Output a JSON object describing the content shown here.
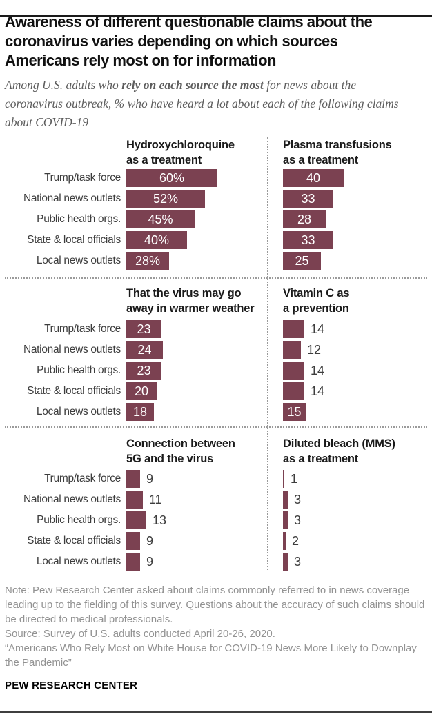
{
  "header": {
    "title_lines": [
      "Awareness of different questionable claims about the",
      "coronavirus varies depending on which sources",
      "Americans rely most on for information"
    ],
    "subtitle": {
      "pre": "Among U.S. adults who ",
      "bold": "rely on each source the most",
      "post": " for news about the coronavirus outbreak, % who have heard a lot about each of the following claims about COVID-19"
    }
  },
  "categories": [
    "Trump/task force",
    "National news outlets",
    "Public health orgs.",
    "State & local officials",
    "Local news outlets"
  ],
  "chart_data": [
    {
      "type": "bar",
      "title_lines": [
        "Hydroxychloroquine",
        "as a treatment"
      ],
      "categories": [
        "Trump/task force",
        "National news outlets",
        "Public health orgs.",
        "State & local officials",
        "Local news outlets"
      ],
      "values": [
        60,
        52,
        45,
        40,
        28
      ],
      "labels": [
        "60%",
        "52%",
        "45%",
        "40%",
        "28%"
      ],
      "label_inside": [
        true,
        true,
        true,
        true,
        true
      ],
      "show_category_labels": true,
      "xlim": [
        0,
        100
      ]
    },
    {
      "type": "bar",
      "title_lines": [
        "Plasma transfusions",
        "as a treatment"
      ],
      "categories": [
        "Trump/task force",
        "National news outlets",
        "Public health orgs.",
        "State & local officials",
        "Local news outlets"
      ],
      "values": [
        40,
        33,
        28,
        33,
        25
      ],
      "labels": [
        "40",
        "33",
        "28",
        "33",
        "25"
      ],
      "label_inside": [
        true,
        true,
        true,
        true,
        true
      ],
      "show_category_labels": false,
      "xlim": [
        0,
        100
      ]
    },
    {
      "type": "bar",
      "title_lines": [
        "That the virus may go",
        "away in warmer weather"
      ],
      "categories": [
        "Trump/task force",
        "National news outlets",
        "Public health orgs.",
        "State & local officials",
        "Local news outlets"
      ],
      "values": [
        23,
        24,
        23,
        20,
        18
      ],
      "labels": [
        "23",
        "24",
        "23",
        "20",
        "18"
      ],
      "label_inside": [
        true,
        true,
        true,
        true,
        true
      ],
      "show_category_labels": true,
      "xlim": [
        0,
        100
      ]
    },
    {
      "type": "bar",
      "title_lines": [
        "Vitamin C as",
        "a prevention"
      ],
      "categories": [
        "Trump/task force",
        "National news outlets",
        "Public health orgs.",
        "State & local officials",
        "Local news outlets"
      ],
      "values": [
        14,
        12,
        14,
        14,
        15
      ],
      "labels": [
        "14",
        "12",
        "14",
        "14",
        "15"
      ],
      "label_inside": [
        false,
        false,
        false,
        false,
        true
      ],
      "show_category_labels": false,
      "xlim": [
        0,
        100
      ]
    },
    {
      "type": "bar",
      "title_lines": [
        "Connection between",
        "5G and the virus"
      ],
      "categories": [
        "Trump/task force",
        "National news outlets",
        "Public health orgs.",
        "State & local officials",
        "Local news outlets"
      ],
      "values": [
        9,
        11,
        13,
        9,
        9
      ],
      "labels": [
        "9",
        "11",
        "13",
        "9",
        "9"
      ],
      "label_inside": [
        false,
        false,
        false,
        false,
        false
      ],
      "show_category_labels": true,
      "xlim": [
        0,
        100
      ]
    },
    {
      "type": "bar",
      "title_lines": [
        "Diluted bleach (MMS)",
        "as a treatment"
      ],
      "categories": [
        "Trump/task force",
        "National news outlets",
        "Public health orgs.",
        "State & local officials",
        "Local news outlets"
      ],
      "values": [
        1,
        3,
        3,
        2,
        3
      ],
      "labels": [
        "1",
        "3",
        "3",
        "2",
        "3"
      ],
      "label_inside": [
        false,
        false,
        false,
        false,
        false
      ],
      "show_category_labels": false,
      "xlim": [
        0,
        100
      ]
    }
  ],
  "colors": {
    "bar": "#7b4151",
    "value_inside": "#ffffff",
    "value_outside": "#3d3d3d",
    "top_rule": "#1a1a1a",
    "bottom_rule": "#3f3f3f",
    "divider_dots": "#9a9a9a"
  },
  "footer": {
    "note": "Note: Pew Research Center asked about claims commonly referred to in news coverage leading up to the fielding of this survey. Questions about the accuracy of such claims should be directed to medical professionals.",
    "source": "Source: Survey of U.S. adults conducted April 20-26, 2020.",
    "quote": "“Americans Who Rely Most on White House for COVID-19 News More Likely to Downplay the Pandemic”",
    "brand": "PEW RESEARCH CENTER"
  }
}
